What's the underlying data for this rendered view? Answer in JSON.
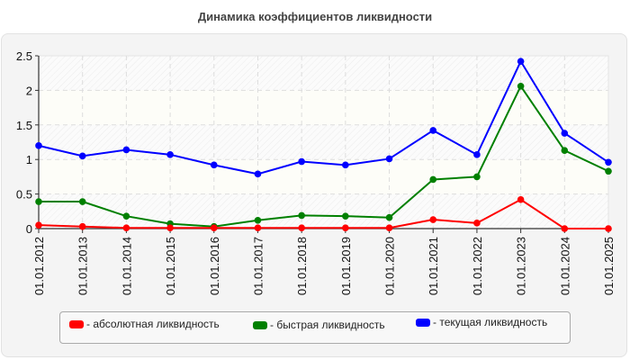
{
  "title": "Динамика коэффициентов ликвидности",
  "chart_data": {
    "type": "line",
    "title": "Динамика коэффициентов ликвидности",
    "xlabel": "",
    "ylabel": "",
    "categories": [
      "01.01.2012",
      "01.01.2013",
      "01.01.2014",
      "01.01.2015",
      "01.01.2016",
      "01.01.2017",
      "01.01.2018",
      "01.01.2019",
      "01.01.2020",
      "01.01.2021",
      "01.01.2022",
      "01.01.2023",
      "01.01.2024",
      "01.01.2025"
    ],
    "yticks": [
      "0",
      "0.5",
      "1",
      "1.5",
      "2",
      "2.5"
    ],
    "ylim": [
      0,
      2.5
    ],
    "grid": true,
    "legend_position": "bottom",
    "series": [
      {
        "name": "абсолютная ликвидность",
        "color": "#ff0000",
        "values": [
          0.05,
          0.03,
          0.01,
          0.01,
          0.01,
          0.01,
          0.01,
          0.01,
          0.01,
          0.13,
          0.08,
          0.42,
          0.0,
          0.0
        ]
      },
      {
        "name": "быстрая ликвидность",
        "color": "#008000",
        "values": [
          0.39,
          0.39,
          0.18,
          0.07,
          0.03,
          0.12,
          0.19,
          0.18,
          0.16,
          0.71,
          0.75,
          2.06,
          1.13,
          0.83
        ]
      },
      {
        "name": "текущая ликвидность",
        "color": "#0000ff",
        "values": [
          1.2,
          1.05,
          1.14,
          1.07,
          0.92,
          0.79,
          0.97,
          0.92,
          1.01,
          1.42,
          1.07,
          2.42,
          1.38,
          0.96
        ]
      }
    ]
  },
  "legend": {
    "items": [
      {
        "label": "- абсолютная ликвидность",
        "color": "#ff0000"
      },
      {
        "label": "- быстрая ликвидность",
        "color": "#008000"
      },
      {
        "label": "- текущая ликвидность",
        "color": "#0000ff"
      }
    ]
  }
}
